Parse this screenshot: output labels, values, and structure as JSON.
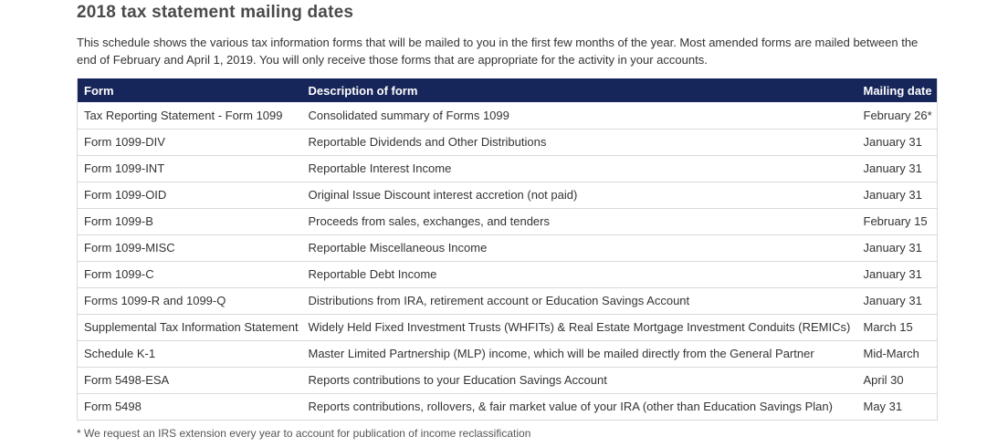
{
  "page": {
    "title": "2018 tax statement mailing dates",
    "intro": "This schedule shows the various tax information forms that will be mailed to you in the first few months of the year. Most amended forms are mailed between the end of February and April 1, 2019. You will only receive those forms that are appropriate for the activity in your accounts.",
    "footnote": "* We request an IRS extension every year to account for publication of income reclassification"
  },
  "colors": {
    "header_bg": "#16265a",
    "header_text": "#ffffff",
    "row_border": "#d9d9d9",
    "body_text": "#333333",
    "title_text": "#4a4a4a"
  },
  "table": {
    "headers": [
      "Form",
      "Description of form",
      "Mailing date"
    ],
    "rows": [
      [
        "Tax Reporting Statement - Form 1099",
        "Consolidated summary of Forms 1099",
        "February 26*"
      ],
      [
        "Form 1099-DIV",
        "Reportable Dividends and Other Distributions",
        "January 31"
      ],
      [
        "Form 1099-INT",
        "Reportable Interest Income",
        "January 31"
      ],
      [
        "Form 1099-OID",
        "Original Issue Discount interest accretion (not paid)",
        "January 31"
      ],
      [
        "Form 1099-B",
        "Proceeds from sales, exchanges, and tenders",
        "February 15"
      ],
      [
        "Form 1099-MISC",
        "Reportable Miscellaneous Income",
        "January 31"
      ],
      [
        "Form 1099-C",
        "Reportable Debt Income",
        "January 31"
      ],
      [
        "Forms 1099-R and 1099-Q",
        "Distributions from IRA, retirement account or Education Savings Account",
        "January 31"
      ],
      [
        "Supplemental Tax Information Statement",
        "Widely Held Fixed Investment Trusts (WHFITs) & Real Estate Mortgage Investment Conduits (REMICs)",
        "March 15"
      ],
      [
        "Schedule K-1",
        "Master Limited Partnership (MLP) income, which will be mailed directly from the General Partner",
        "Mid-March"
      ],
      [
        "Form 5498-ESA",
        "Reports contributions to your Education Savings Account",
        "April 30"
      ],
      [
        "Form 5498",
        "Reports contributions, rollovers, & fair market value of your IRA (other than Education Savings Plan)",
        "May 31"
      ]
    ]
  }
}
